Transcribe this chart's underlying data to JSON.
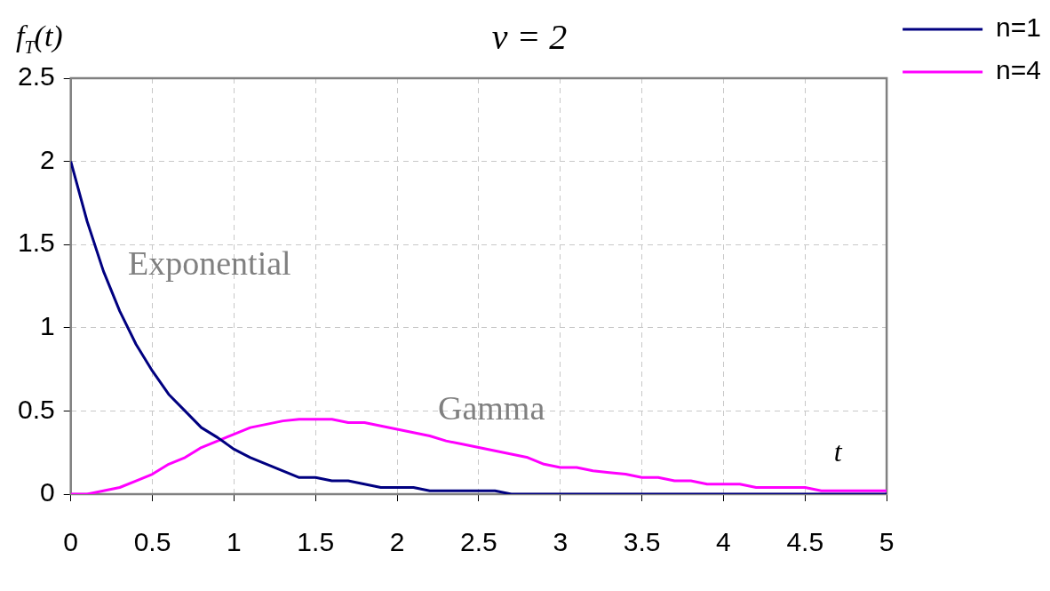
{
  "chart_data": {
    "type": "line",
    "title": "ν = 2",
    "xlabel": "t",
    "ylabel": "f$_{T}$(t)",
    "x": [
      0,
      0.1,
      0.2,
      0.3,
      0.4,
      0.5,
      0.6,
      0.7,
      0.8,
      0.9,
      1,
      1.1,
      1.2,
      1.3,
      1.4,
      1.5,
      1.6,
      1.7,
      1.8,
      1.9,
      2,
      2.1,
      2.2,
      2.3,
      2.4,
      2.5,
      2.6,
      2.7,
      2.8,
      2.9,
      3,
      3.1,
      3.2,
      3.3,
      3.4,
      3.5,
      3.6,
      3.7,
      3.8,
      3.9,
      4,
      4.1,
      4.2,
      4.3,
      4.4,
      4.5,
      4.6,
      4.7,
      4.8,
      4.9,
      5
    ],
    "series": [
      {
        "name": "n=1",
        "color": "#000080",
        "values": [
          2,
          1.64,
          1.34,
          1.1,
          0.9,
          0.74,
          0.6,
          0.5,
          0.4,
          0.34,
          0.27,
          0.22,
          0.18,
          0.14,
          0.1,
          0.1,
          0.08,
          0.08,
          0.06,
          0.04,
          0.04,
          0.04,
          0.02,
          0.02,
          0.02,
          0.02,
          0.02,
          0,
          0,
          0,
          0,
          0,
          0,
          0,
          0,
          0,
          0,
          0,
          0,
          0,
          0,
          0,
          0,
          0,
          0,
          0,
          0,
          0,
          0,
          0,
          0
        ]
      },
      {
        "name": "n=4",
        "color": "#ff00ff",
        "values": [
          0,
          0,
          0.02,
          0.04,
          0.08,
          0.12,
          0.18,
          0.22,
          0.28,
          0.32,
          0.36,
          0.4,
          0.42,
          0.44,
          0.45,
          0.45,
          0.45,
          0.43,
          0.43,
          0.41,
          0.39,
          0.37,
          0.35,
          0.32,
          0.3,
          0.28,
          0.26,
          0.24,
          0.22,
          0.18,
          0.16,
          0.16,
          0.14,
          0.13,
          0.12,
          0.1,
          0.1,
          0.08,
          0.08,
          0.06,
          0.06,
          0.06,
          0.04,
          0.04,
          0.04,
          0.04,
          0.02,
          0.02,
          0.02,
          0.02,
          0.02
        ]
      }
    ],
    "xlim": [
      0,
      5
    ],
    "xticks": [
      0,
      0.5,
      1,
      1.5,
      2,
      2.5,
      3,
      3.5,
      4,
      4.5,
      5
    ],
    "ylim": [
      0,
      2.5
    ],
    "yticks": [
      0,
      0.5,
      1,
      1.5,
      2,
      2.5
    ],
    "grid": true,
    "legend": "top right",
    "marker": "none",
    "line_style": "solid",
    "annotations": [
      "Exponential",
      "Gamma"
    ]
  }
}
